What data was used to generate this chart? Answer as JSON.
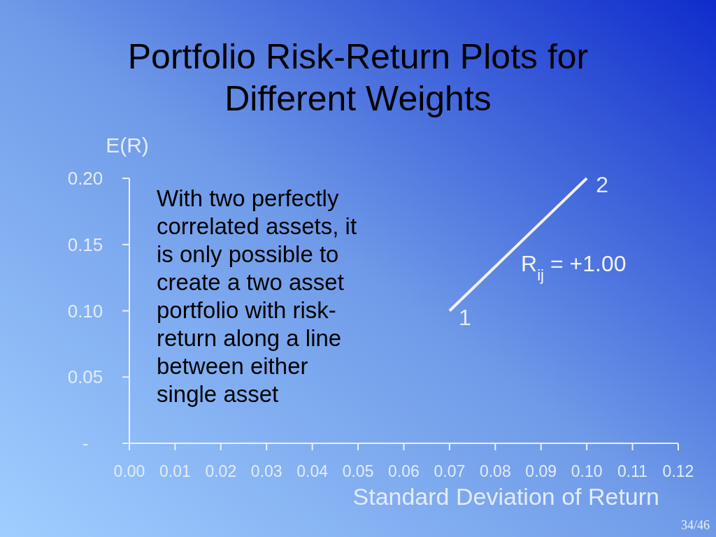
{
  "chart_data": {
    "type": "line",
    "title": "Portfolio Risk-Return Plots for\nDifferent Weights",
    "xlabel": "Standard Deviation of Return",
    "ylabel": "E(R)",
    "xlim": [
      0,
      0.12
    ],
    "xticks": [
      {
        "value": 0,
        "label": "0.00"
      },
      0.01,
      0.02,
      0.03,
      0.04,
      0.05,
      0.06,
      0.07,
      0.08,
      0.09,
      {
        "value": 0.1,
        "label": "0.10"
      },
      0.11,
      0.12
    ],
    "ylim": [
      0,
      0.2
    ],
    "yticks": [
      {
        "value": 0,
        "label": "-"
      },
      0.05,
      {
        "value": 0.1,
        "label": "0.10"
      },
      0.15,
      {
        "value": 0.2,
        "label": "0.20"
      }
    ],
    "series": [
      {
        "name": "R$_{ij}$ = +1.00",
        "color": "#f4f4f4",
        "x": [
          0.07,
          0.1
        ],
        "values": [
          0.1,
          0.2
        ]
      }
    ],
    "annotations": [
      "With two perfectly\ncorrelated assets, it\nis only possible to\ncreate a two asset\nportfolio with risk-\nreturn along a line\nbetween either\nsingle asset",
      {
        "text": "1",
        "x": 0.07,
        "y": 0.1
      },
      {
        "text": "2",
        "x": 0.1,
        "y": 0.2
      },
      "34/46"
    ]
  }
}
